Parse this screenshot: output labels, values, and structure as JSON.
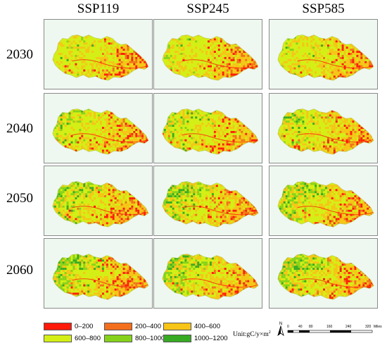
{
  "scenarios": [
    "SSP119",
    "SSP245",
    "SSP585"
  ],
  "years": [
    "2030",
    "2040",
    "2050",
    "2060"
  ],
  "legend": {
    "items": [
      {
        "label": "0–200",
        "color": "#ff1a0a"
      },
      {
        "label": "200–400",
        "color": "#f46f1c"
      },
      {
        "label": "400–600",
        "color": "#f7c418"
      },
      {
        "label": "600–800",
        "color": "#d4ef16"
      },
      {
        "label": "800–1000",
        "color": "#86d21b"
      },
      {
        "label": "1000–1200",
        "color": "#36aa23"
      }
    ],
    "unit_prefix": "Unit:gC/y×m",
    "unit_sup": "2"
  },
  "north_label": "N",
  "scale_bar": {
    "ticks": [
      "0",
      "40",
      "80",
      "160",
      "240",
      "320"
    ],
    "unit": "Miles"
  },
  "map_grid": {
    "type": "heatmap",
    "rows": [
      "2030",
      "2040",
      "2050",
      "2060"
    ],
    "columns": [
      "SSP119",
      "SSP245",
      "SSP585"
    ],
    "west_green_level": [
      [
        0.1,
        0.1,
        0.15
      ],
      [
        0.35,
        0.35,
        0.45
      ],
      [
        0.55,
        0.6,
        0.65
      ],
      [
        0.75,
        0.75,
        0.8
      ]
    ]
  }
}
